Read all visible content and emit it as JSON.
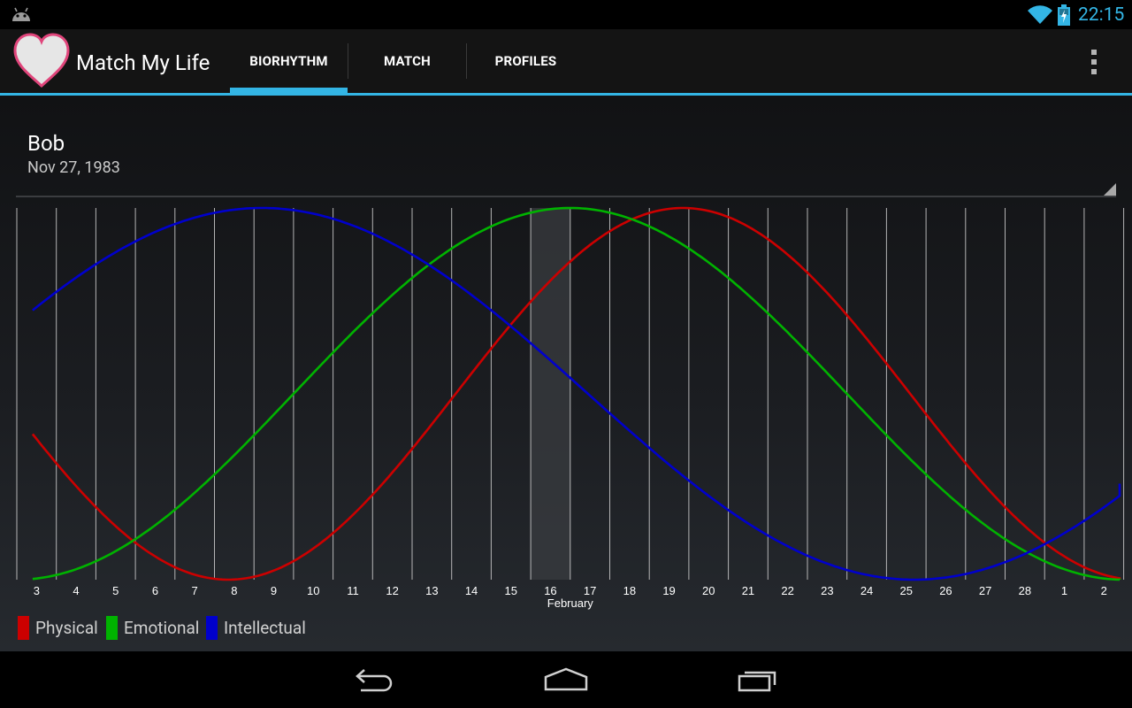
{
  "status_bar": {
    "time": "22:15",
    "icons": [
      "android-debug-icon",
      "wifi-icon",
      "battery-charging-icon"
    ]
  },
  "app": {
    "title": "Match My Life",
    "icon": "heart-icon"
  },
  "tabs": [
    {
      "label": "BIORHYTHM",
      "selected": true
    },
    {
      "label": "MATCH",
      "selected": false
    },
    {
      "label": "PROFILES",
      "selected": false
    }
  ],
  "profile": {
    "name": "Bob",
    "birthdate": "Nov 27, 1983"
  },
  "chart_data": {
    "type": "line",
    "x": [
      "3",
      "4",
      "5",
      "6",
      "7",
      "8",
      "9",
      "10",
      "11",
      "12",
      "13",
      "14",
      "15",
      "16",
      "17",
      "18",
      "19",
      "20",
      "21",
      "22",
      "23",
      "24",
      "25",
      "26",
      "27",
      "28",
      "1",
      "2"
    ],
    "month_label": "February",
    "highlighted_day": "16",
    "ylim": [
      -1,
      1
    ],
    "grid": true,
    "legend_position": "bottom-left",
    "series": [
      {
        "name": "Physical",
        "color": "#cc0000",
        "period": 23,
        "peak_day": 19.35
      },
      {
        "name": "Emotional",
        "color": "#00b300",
        "period": 28,
        "peak_day": 16.5
      },
      {
        "name": "Intellectual",
        "color": "#0000cc",
        "period": 33,
        "peak_day": 8.7
      }
    ]
  },
  "nav_bar": {
    "icons": [
      "back-icon",
      "home-icon",
      "recent-apps-icon"
    ]
  },
  "colors": {
    "accent": "#33b5e5"
  }
}
